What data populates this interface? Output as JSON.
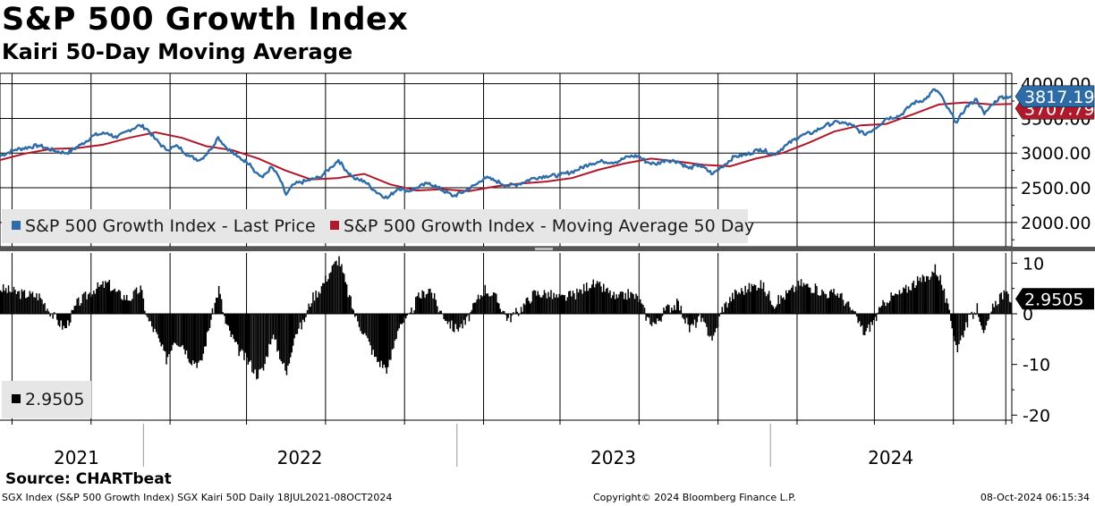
{
  "header": {
    "title": "S&P 500 Growth Index",
    "subtitle": "Kairi 50-Day Moving Average"
  },
  "footer": {
    "source": "Source: CHARTbeat",
    "left": "SGX Index (S&P 500 Growth Index) SGX Kairi 50D  Daily 18JUL2021-08OCT2024",
    "center": "Copyright© 2024 Bloomberg Finance L.P.",
    "right": "08-Oct-2024 06:15:34"
  },
  "colors": {
    "price": "#2e6ca8",
    "ma": "#b0182b",
    "kairi": "#000000",
    "grid": "#000000",
    "legend_bg": "#e6e6e6",
    "divider": "#555555"
  },
  "chart_data": [
    {
      "type": "line",
      "panel": "upper",
      "ylim": [
        1650,
        4150
      ],
      "yticks": [
        2000,
        2500,
        3000,
        3500,
        4000
      ],
      "ytick_labels": [
        "2000.00",
        "2500.00",
        "3000.00",
        "3500.00",
        "4000.00"
      ],
      "x_range": [
        "2021-07-18",
        "2024-10-08"
      ],
      "year_labels": [
        "2021",
        "2022",
        "2023",
        "2024"
      ],
      "year_label_centers": [
        "2021-10-15",
        "2022-07-02",
        "2023-07-02",
        "2024-05-20"
      ],
      "year_boundaries": [
        "2022-01-01",
        "2023-01-01",
        "2024-01-01"
      ],
      "gridline_dates": [
        "2021-08-01",
        "2021-11-01",
        "2022-02-01",
        "2022-05-01",
        "2022-08-01",
        "2022-11-01",
        "2023-02-01",
        "2023-05-01",
        "2023-08-01",
        "2023-11-01",
        "2024-02-01",
        "2024-05-01",
        "2024-08-01",
        "2024-10-01"
      ],
      "legend": [
        "S&P 500 Growth Index - Last Price",
        "S&P 500 Growth Index - Moving Average 50 Day"
      ],
      "series": [
        {
          "name": "S&P 500 Growth Index - Last Price",
          "last_value_label": "3817.19",
          "points": [
            [
              "2021-07-18",
              2960
            ],
            [
              "2021-08-05",
              3050
            ],
            [
              "2021-09-01",
              3110
            ],
            [
              "2021-09-20",
              3030
            ],
            [
              "2021-10-04",
              3000
            ],
            [
              "2021-10-20",
              3120
            ],
            [
              "2021-11-05",
              3260
            ],
            [
              "2021-11-20",
              3290
            ],
            [
              "2021-12-01",
              3220
            ],
            [
              "2021-12-15",
              3330
            ],
            [
              "2021-12-28",
              3400
            ],
            [
              "2022-01-05",
              3350
            ],
            [
              "2022-01-15",
              3200
            ],
            [
              "2022-01-27",
              3050
            ],
            [
              "2022-02-10",
              3100
            ],
            [
              "2022-02-24",
              2950
            ],
            [
              "2022-03-08",
              2900
            ],
            [
              "2022-03-20",
              3050
            ],
            [
              "2022-03-29",
              3230
            ],
            [
              "2022-04-06",
              3100
            ],
            [
              "2022-04-20",
              2950
            ],
            [
              "2022-05-05",
              2850
            ],
            [
              "2022-05-12",
              2720
            ],
            [
              "2022-05-20",
              2650
            ],
            [
              "2022-05-30",
              2800
            ],
            [
              "2022-06-08",
              2650
            ],
            [
              "2022-06-16",
              2400
            ],
            [
              "2022-06-25",
              2550
            ],
            [
              "2022-07-10",
              2600
            ],
            [
              "2022-07-25",
              2650
            ],
            [
              "2022-08-08",
              2800
            ],
            [
              "2022-08-16",
              2900
            ],
            [
              "2022-08-25",
              2750
            ],
            [
              "2022-09-05",
              2620
            ],
            [
              "2022-09-15",
              2600
            ],
            [
              "2022-09-28",
              2450
            ],
            [
              "2022-10-12",
              2350
            ],
            [
              "2022-10-25",
              2500
            ],
            [
              "2022-11-05",
              2450
            ],
            [
              "2022-11-15",
              2500
            ],
            [
              "2022-11-30",
              2570
            ],
            [
              "2022-12-10",
              2500
            ],
            [
              "2022-12-28",
              2380
            ],
            [
              "2023-01-10",
              2450
            ],
            [
              "2023-01-25",
              2560
            ],
            [
              "2023-02-02",
              2650
            ],
            [
              "2023-02-15",
              2600
            ],
            [
              "2023-03-01",
              2530
            ],
            [
              "2023-03-13",
              2550
            ],
            [
              "2023-03-31",
              2640
            ],
            [
              "2023-04-15",
              2670
            ],
            [
              "2023-05-01",
              2680
            ],
            [
              "2023-05-20",
              2750
            ],
            [
              "2023-06-05",
              2850
            ],
            [
              "2023-06-20",
              2880
            ],
            [
              "2023-07-05",
              2870
            ],
            [
              "2023-07-20",
              2950
            ],
            [
              "2023-07-31",
              2960
            ],
            [
              "2023-08-10",
              2870
            ],
            [
              "2023-08-20",
              2840
            ],
            [
              "2023-09-01",
              2900
            ],
            [
              "2023-09-15",
              2880
            ],
            [
              "2023-09-28",
              2780
            ],
            [
              "2023-10-10",
              2830
            ],
            [
              "2023-10-26",
              2700
            ],
            [
              "2023-11-05",
              2800
            ],
            [
              "2023-11-20",
              2950
            ],
            [
              "2023-12-05",
              2980
            ],
            [
              "2023-12-20",
              3060
            ],
            [
              "2024-01-05",
              2980
            ],
            [
              "2024-01-20",
              3120
            ],
            [
              "2024-02-05",
              3250
            ],
            [
              "2024-02-20",
              3300
            ],
            [
              "2024-03-05",
              3400
            ],
            [
              "2024-03-20",
              3450
            ],
            [
              "2024-04-05",
              3400
            ],
            [
              "2024-04-19",
              3270
            ],
            [
              "2024-05-01",
              3350
            ],
            [
              "2024-05-15",
              3500
            ],
            [
              "2024-05-31",
              3540
            ],
            [
              "2024-06-15",
              3720
            ],
            [
              "2024-06-30",
              3780
            ],
            [
              "2024-07-10",
              3920
            ],
            [
              "2024-07-16",
              3860
            ],
            [
              "2024-07-25",
              3650
            ],
            [
              "2024-08-05",
              3440
            ],
            [
              "2024-08-15",
              3650
            ],
            [
              "2024-08-28",
              3780
            ],
            [
              "2024-09-06",
              3560
            ],
            [
              "2024-09-15",
              3700
            ],
            [
              "2024-09-25",
              3810
            ],
            [
              "2024-10-08",
              3817.19
            ]
          ]
        },
        {
          "name": "S&P 500 Growth Index - Moving Average 50 Day",
          "last_value_label": "3707.79",
          "points": [
            [
              "2021-07-18",
              2900
            ],
            [
              "2021-08-15",
              2990
            ],
            [
              "2021-09-15",
              3060
            ],
            [
              "2021-10-15",
              3070
            ],
            [
              "2021-11-15",
              3120
            ],
            [
              "2021-12-15",
              3220
            ],
            [
              "2022-01-15",
              3300
            ],
            [
              "2022-02-15",
              3220
            ],
            [
              "2022-03-15",
              3100
            ],
            [
              "2022-04-15",
              3040
            ],
            [
              "2022-05-15",
              2920
            ],
            [
              "2022-06-15",
              2750
            ],
            [
              "2022-07-15",
              2620
            ],
            [
              "2022-08-15",
              2640
            ],
            [
              "2022-09-15",
              2700
            ],
            [
              "2022-10-15",
              2550
            ],
            [
              "2022-11-15",
              2460
            ],
            [
              "2022-12-15",
              2480
            ],
            [
              "2023-01-15",
              2450
            ],
            [
              "2023-02-15",
              2520
            ],
            [
              "2023-03-15",
              2560
            ],
            [
              "2023-04-15",
              2590
            ],
            [
              "2023-05-15",
              2640
            ],
            [
              "2023-06-15",
              2760
            ],
            [
              "2023-07-15",
              2850
            ],
            [
              "2023-08-15",
              2920
            ],
            [
              "2023-09-15",
              2880
            ],
            [
              "2023-10-15",
              2830
            ],
            [
              "2023-11-15",
              2810
            ],
            [
              "2023-12-15",
              2920
            ],
            [
              "2024-01-15",
              3000
            ],
            [
              "2024-02-15",
              3150
            ],
            [
              "2024-03-15",
              3310
            ],
            [
              "2024-04-15",
              3400
            ],
            [
              "2024-05-15",
              3420
            ],
            [
              "2024-06-15",
              3560
            ],
            [
              "2024-07-15",
              3700
            ],
            [
              "2024-08-15",
              3730
            ],
            [
              "2024-09-15",
              3700
            ],
            [
              "2024-10-08",
              3707.79
            ]
          ]
        }
      ]
    },
    {
      "type": "bar",
      "panel": "lower",
      "ylim": [
        -21,
        12
      ],
      "yticks": [
        10,
        0,
        -10,
        -20
      ],
      "ytick_labels": [
        "10",
        "0",
        "-10",
        "-20"
      ],
      "legend": [
        "2.9505"
      ],
      "series": [
        {
          "name": "2.9505",
          "last_value_label": "2.9505",
          "envelope": [
            [
              "2021-07-18",
              5
            ],
            [
              "2021-08-10",
              4
            ],
            [
              "2021-09-01",
              3.5
            ],
            [
              "2021-09-20",
              -1
            ],
            [
              "2021-10-01",
              -3
            ],
            [
              "2021-10-15",
              2
            ],
            [
              "2021-11-05",
              5
            ],
            [
              "2021-11-20",
              6
            ],
            [
              "2021-12-01",
              4
            ],
            [
              "2021-12-15",
              3
            ],
            [
              "2021-12-28",
              5
            ],
            [
              "2022-01-05",
              -1
            ],
            [
              "2022-01-15",
              -4
            ],
            [
              "2022-01-27",
              -9
            ],
            [
              "2022-02-05",
              -5
            ],
            [
              "2022-02-15",
              -6
            ],
            [
              "2022-02-24",
              -9
            ],
            [
              "2022-03-08",
              -10
            ],
            [
              "2022-03-20",
              -1
            ],
            [
              "2022-03-29",
              5
            ],
            [
              "2022-04-06",
              -2
            ],
            [
              "2022-04-20",
              -7
            ],
            [
              "2022-05-05",
              -10
            ],
            [
              "2022-05-12",
              -12
            ],
            [
              "2022-05-20",
              -11
            ],
            [
              "2022-05-30",
              -4
            ],
            [
              "2022-06-08",
              -8
            ],
            [
              "2022-06-16",
              -12
            ],
            [
              "2022-06-25",
              -4
            ],
            [
              "2022-07-05",
              -2
            ],
            [
              "2022-07-15",
              3
            ],
            [
              "2022-07-25",
              5
            ],
            [
              "2022-08-08",
              9
            ],
            [
              "2022-08-16",
              11
            ],
            [
              "2022-08-25",
              5
            ],
            [
              "2022-09-05",
              -1
            ],
            [
              "2022-09-15",
              -4
            ],
            [
              "2022-09-28",
              -9
            ],
            [
              "2022-10-12",
              -11
            ],
            [
              "2022-10-25",
              -2
            ],
            [
              "2022-11-05",
              -1
            ],
            [
              "2022-11-15",
              3
            ],
            [
              "2022-11-30",
              5
            ],
            [
              "2022-12-10",
              1
            ],
            [
              "2022-12-28",
              -3
            ],
            [
              "2023-01-10",
              -2
            ],
            [
              "2023-01-25",
              3
            ],
            [
              "2023-02-02",
              5
            ],
            [
              "2023-02-15",
              3
            ],
            [
              "2023-03-01",
              -1
            ],
            [
              "2023-03-13",
              0.5
            ],
            [
              "2023-03-31",
              4
            ],
            [
              "2023-04-15",
              4
            ],
            [
              "2023-05-01",
              3
            ],
            [
              "2023-05-20",
              4
            ],
            [
              "2023-06-05",
              6
            ],
            [
              "2023-06-20",
              5
            ],
            [
              "2023-07-05",
              3
            ],
            [
              "2023-07-20",
              4
            ],
            [
              "2023-07-31",
              3
            ],
            [
              "2023-08-10",
              -1
            ],
            [
              "2023-08-20",
              -2
            ],
            [
              "2023-09-01",
              1
            ],
            [
              "2023-09-15",
              2
            ],
            [
              "2023-09-28",
              -3
            ],
            [
              "2023-10-10",
              -1
            ],
            [
              "2023-10-26",
              -5
            ],
            [
              "2023-11-05",
              1
            ],
            [
              "2023-11-20",
              4
            ],
            [
              "2023-12-05",
              5
            ],
            [
              "2023-12-20",
              6
            ],
            [
              "2024-01-05",
              2
            ],
            [
              "2024-01-20",
              4
            ],
            [
              "2024-02-05",
              6
            ],
            [
              "2024-02-20",
              5
            ],
            [
              "2024-03-05",
              4
            ],
            [
              "2024-03-20",
              4
            ],
            [
              "2024-04-05",
              0.5
            ],
            [
              "2024-04-19",
              -4
            ],
            [
              "2024-05-01",
              -1
            ],
            [
              "2024-05-15",
              3
            ],
            [
              "2024-05-31",
              4
            ],
            [
              "2024-06-15",
              6
            ],
            [
              "2024-06-30",
              7
            ],
            [
              "2024-07-10",
              9
            ],
            [
              "2024-07-16",
              7
            ],
            [
              "2024-07-25",
              1
            ],
            [
              "2024-08-05",
              -7
            ],
            [
              "2024-08-15",
              -2
            ],
            [
              "2024-08-28",
              1
            ],
            [
              "2024-09-06",
              -4
            ],
            [
              "2024-09-15",
              1
            ],
            [
              "2024-09-25",
              4
            ],
            [
              "2024-10-08",
              2.9505
            ]
          ]
        }
      ]
    }
  ]
}
